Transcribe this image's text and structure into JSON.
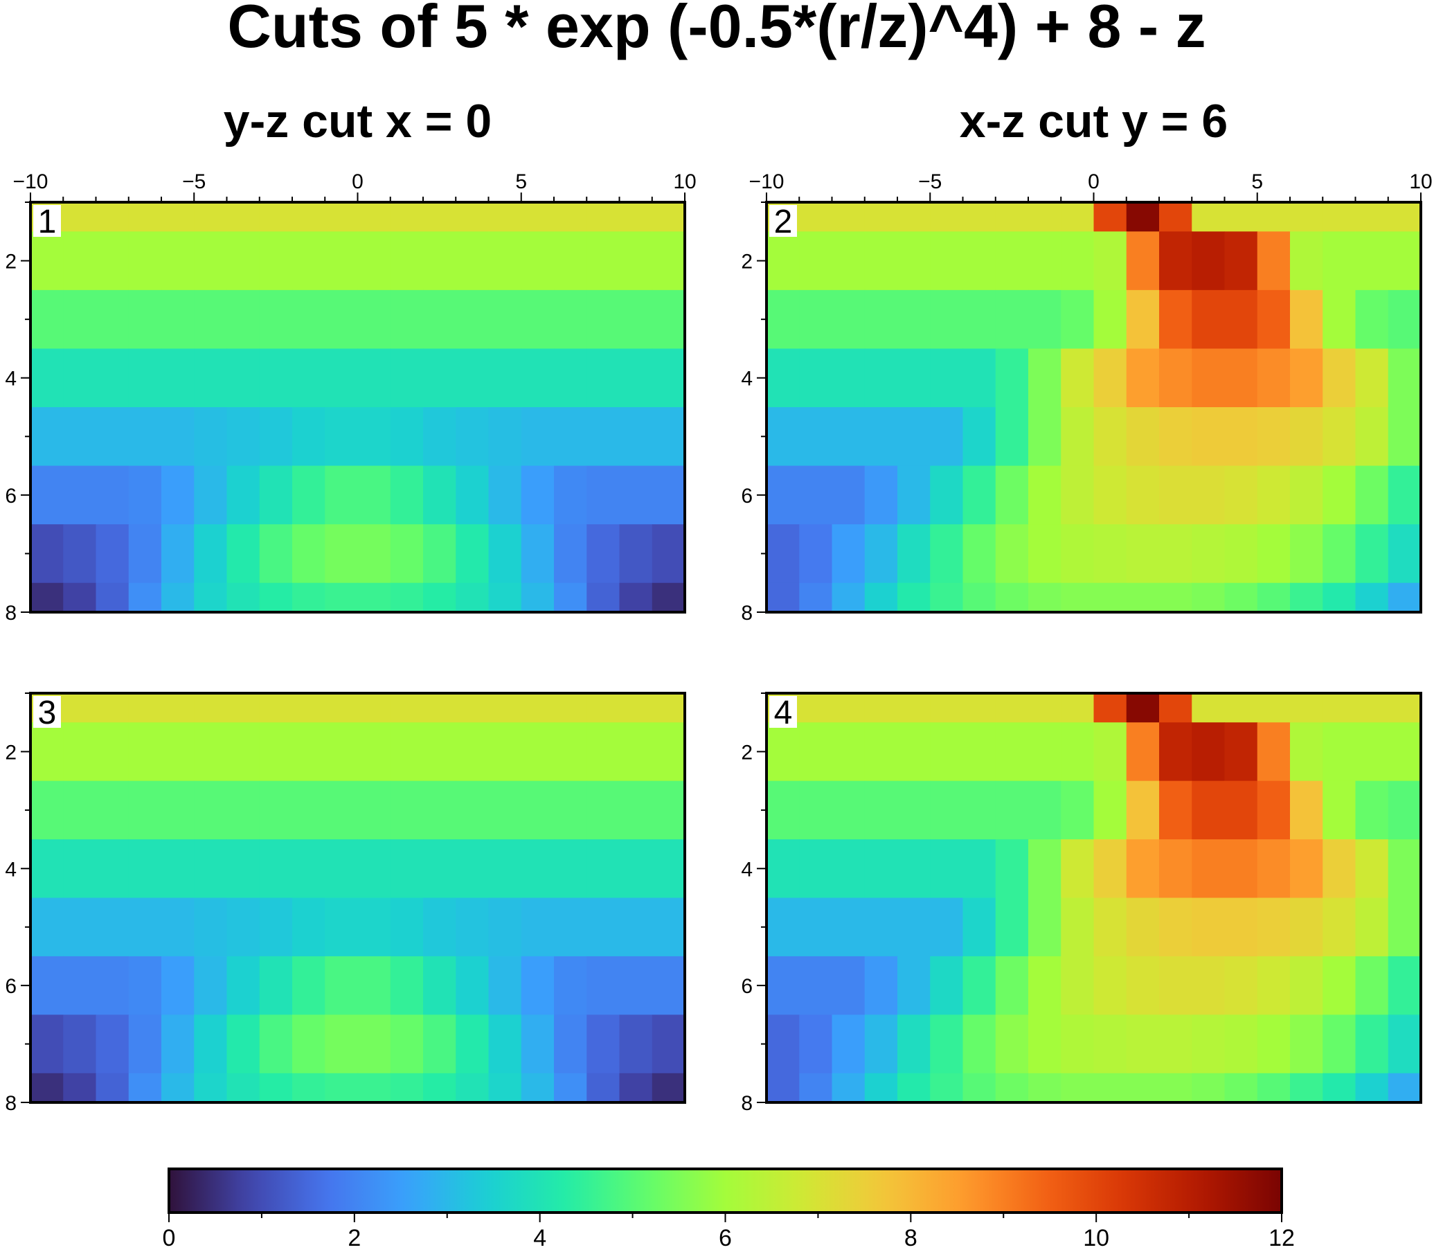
{
  "figure": {
    "title": "Cuts of 5 * exp (-0.5*(r/z)^4) + 8 - z"
  },
  "colormap": [
    "#30123b",
    "#4145ab",
    "#4675ed",
    "#39a2fc",
    "#1bcfd4",
    "#24eca6",
    "#61fc6c",
    "#a4fc3b",
    "#d1e834",
    "#f3c63a",
    "#fe9b2d",
    "#f36315",
    "#d93806",
    "#b11901",
    "#7a0402"
  ],
  "chart_data": [
    {
      "type": "heatmap",
      "panel": "1",
      "title": "y-z cut x = 0",
      "x": [
        -9.5,
        -8.5,
        -7.5,
        -6.5,
        -5.5,
        -4.5,
        -3.5,
        -2.5,
        -1.5,
        -0.5,
        0.5,
        1.5,
        2.5,
        3.5,
        4.5,
        5.5,
        6.5,
        7.5,
        8.5,
        9.5
      ],
      "z": [
        1,
        2,
        3,
        4,
        5,
        6,
        7,
        8
      ],
      "xlim": [
        -10,
        10
      ],
      "ylim": [
        1,
        8
      ],
      "x_ticks": [
        "−10",
        "−5",
        "0",
        "5",
        "10"
      ],
      "y_ticks": [
        "2",
        "4",
        "6",
        "8"
      ],
      "values": [
        [
          7.0,
          7.0,
          7.0,
          7.0,
          7.0,
          7.0,
          7.0,
          7.0,
          7.0,
          7.0,
          7.0,
          7.0,
          7.0,
          7.0,
          7.0,
          7.0,
          7.0,
          7.0,
          7.0,
          7.0
        ],
        [
          6.0,
          6.0,
          6.0,
          6.0,
          6.0,
          6.0,
          6.0,
          6.0,
          6.0,
          6.0,
          6.0,
          6.0,
          6.0,
          6.0,
          6.0,
          6.0,
          6.0,
          6.0,
          6.0,
          6.0
        ],
        [
          5.0,
          5.0,
          5.0,
          5.0,
          5.0,
          5.0,
          5.0,
          5.0,
          5.0,
          5.0,
          5.0,
          5.0,
          5.0,
          5.0,
          5.0,
          5.0,
          5.0,
          5.0,
          5.0,
          5.0
        ],
        [
          4.0,
          4.0,
          4.0,
          4.0,
          4.0,
          4.0,
          4.0,
          4.0,
          4.0,
          4.0,
          4.0,
          4.0,
          4.0,
          4.0,
          4.0,
          4.0,
          4.0,
          4.0,
          4.0,
          4.0
        ],
        [
          3.0,
          3.0,
          3.0,
          3.0,
          3.0,
          3.1,
          3.2,
          3.3,
          3.5,
          3.6,
          3.6,
          3.5,
          3.3,
          3.2,
          3.1,
          3.0,
          3.0,
          3.0,
          3.0,
          3.0
        ],
        [
          2.0,
          2.0,
          2.0,
          2.1,
          2.5,
          3.0,
          3.5,
          4.0,
          4.5,
          4.8,
          4.8,
          4.5,
          4.0,
          3.5,
          3.0,
          2.5,
          2.1,
          2.0,
          2.0,
          2.0
        ],
        [
          1.0,
          1.2,
          1.5,
          2.0,
          2.8,
          3.5,
          4.2,
          4.8,
          5.2,
          5.4,
          5.4,
          5.2,
          4.8,
          4.2,
          3.5,
          2.8,
          2.0,
          1.5,
          1.2,
          1.0
        ],
        [
          0.5,
          0.8,
          1.4,
          2.2,
          3.0,
          3.6,
          4.0,
          4.3,
          4.5,
          4.6,
          4.6,
          4.5,
          4.3,
          4.0,
          3.6,
          3.0,
          2.2,
          1.4,
          0.8,
          0.5
        ]
      ]
    },
    {
      "type": "heatmap",
      "panel": "2",
      "title": "x-z cut y = 6",
      "x": [
        -9.5,
        -8.5,
        -7.5,
        -6.5,
        -5.5,
        -4.5,
        -3.5,
        -2.5,
        -1.5,
        -0.5,
        0.5,
        1.5,
        2.5,
        3.5,
        4.5,
        5.5,
        6.5,
        7.5,
        8.5,
        9.5
      ],
      "z": [
        1,
        2,
        3,
        4,
        5,
        6,
        7,
        8
      ],
      "xlim": [
        -10,
        10
      ],
      "ylim": [
        1,
        8
      ],
      "x_ticks": [
        "−10",
        "−5",
        "0",
        "5",
        "10"
      ],
      "y_ticks": [
        "2",
        "4",
        "6",
        "8"
      ],
      "values": [
        [
          7.0,
          7.0,
          7.0,
          7.0,
          7.0,
          7.0,
          7.0,
          7.0,
          7.0,
          7.0,
          10.0,
          11.8,
          10.0,
          7.0,
          7.0,
          7.0,
          7.0,
          7.0,
          7.0,
          7.0
        ],
        [
          6.0,
          6.0,
          6.0,
          6.0,
          6.0,
          6.0,
          6.0,
          6.0,
          6.0,
          6.0,
          6.2,
          9.0,
          10.8,
          11.0,
          10.8,
          9.0,
          6.2,
          6.0,
          6.0,
          6.0
        ],
        [
          5.0,
          5.0,
          5.0,
          5.0,
          5.0,
          5.0,
          5.0,
          5.0,
          5.0,
          5.2,
          6.0,
          7.8,
          9.5,
          10.0,
          10.0,
          9.5,
          7.8,
          6.0,
          5.2,
          5.0
        ],
        [
          4.0,
          4.0,
          4.0,
          4.0,
          4.0,
          4.0,
          4.0,
          4.5,
          5.5,
          6.8,
          7.5,
          8.5,
          8.8,
          9.0,
          9.0,
          8.8,
          8.5,
          7.5,
          6.8,
          5.5
        ],
        [
          3.0,
          3.0,
          3.0,
          3.0,
          3.0,
          3.0,
          3.6,
          4.5,
          5.5,
          6.5,
          7.0,
          7.3,
          7.5,
          7.6,
          7.6,
          7.5,
          7.3,
          7.0,
          6.5,
          5.5
        ],
        [
          2.0,
          2.0,
          2.0,
          2.4,
          3.0,
          3.7,
          4.5,
          5.3,
          6.0,
          6.5,
          6.8,
          7.0,
          7.1,
          7.1,
          7.0,
          6.8,
          6.5,
          6.0,
          5.3,
          4.5
        ],
        [
          1.5,
          1.8,
          2.5,
          3.0,
          3.8,
          4.5,
          5.2,
          5.7,
          6.0,
          6.2,
          6.3,
          6.4,
          6.4,
          6.3,
          6.2,
          6.0,
          5.7,
          5.2,
          4.5,
          3.8
        ],
        [
          1.5,
          2.0,
          2.8,
          3.5,
          4.2,
          4.6,
          5.0,
          5.3,
          5.5,
          5.6,
          5.6,
          5.6,
          5.6,
          5.5,
          5.3,
          5.0,
          4.6,
          4.2,
          3.5,
          2.8
        ]
      ]
    },
    {
      "type": "heatmap",
      "panel": "3",
      "title": "",
      "x": [
        -9.5,
        -8.5,
        -7.5,
        -6.5,
        -5.5,
        -4.5,
        -3.5,
        -2.5,
        -1.5,
        -0.5,
        0.5,
        1.5,
        2.5,
        3.5,
        4.5,
        5.5,
        6.5,
        7.5,
        8.5,
        9.5
      ],
      "z": [
        1,
        2,
        3,
        4,
        5,
        6,
        7,
        8
      ],
      "xlim": [
        -10,
        10
      ],
      "ylim": [
        1,
        8
      ],
      "x_ticks": [],
      "y_ticks": [
        "2",
        "4",
        "6",
        "8"
      ],
      "values": [
        [
          7.0,
          7.0,
          7.0,
          7.0,
          7.0,
          7.0,
          7.0,
          7.0,
          7.0,
          7.0,
          7.0,
          7.0,
          7.0,
          7.0,
          7.0,
          7.0,
          7.0,
          7.0,
          7.0,
          7.0
        ],
        [
          6.0,
          6.0,
          6.0,
          6.0,
          6.0,
          6.0,
          6.0,
          6.0,
          6.0,
          6.0,
          6.0,
          6.0,
          6.0,
          6.0,
          6.0,
          6.0,
          6.0,
          6.0,
          6.0,
          6.0
        ],
        [
          5.0,
          5.0,
          5.0,
          5.0,
          5.0,
          5.0,
          5.0,
          5.0,
          5.0,
          5.0,
          5.0,
          5.0,
          5.0,
          5.0,
          5.0,
          5.0,
          5.0,
          5.0,
          5.0,
          5.0
        ],
        [
          4.0,
          4.0,
          4.0,
          4.0,
          4.0,
          4.0,
          4.0,
          4.0,
          4.0,
          4.0,
          4.0,
          4.0,
          4.0,
          4.0,
          4.0,
          4.0,
          4.0,
          4.0,
          4.0,
          4.0
        ],
        [
          3.0,
          3.0,
          3.0,
          3.0,
          3.0,
          3.1,
          3.2,
          3.3,
          3.5,
          3.6,
          3.6,
          3.5,
          3.3,
          3.2,
          3.1,
          3.0,
          3.0,
          3.0,
          3.0,
          3.0
        ],
        [
          2.0,
          2.0,
          2.0,
          2.1,
          2.5,
          3.0,
          3.5,
          4.0,
          4.5,
          4.8,
          4.8,
          4.5,
          4.0,
          3.5,
          3.0,
          2.5,
          2.1,
          2.0,
          2.0,
          2.0
        ],
        [
          1.0,
          1.2,
          1.5,
          2.0,
          2.8,
          3.5,
          4.2,
          4.8,
          5.2,
          5.4,
          5.4,
          5.2,
          4.8,
          4.2,
          3.5,
          2.8,
          2.0,
          1.5,
          1.2,
          1.0
        ],
        [
          0.5,
          0.8,
          1.4,
          2.2,
          3.0,
          3.6,
          4.0,
          4.3,
          4.5,
          4.6,
          4.6,
          4.5,
          4.3,
          4.0,
          3.6,
          3.0,
          2.2,
          1.4,
          0.8,
          0.5
        ]
      ]
    },
    {
      "type": "heatmap",
      "panel": "4",
      "title": "",
      "x": [
        -9.5,
        -8.5,
        -7.5,
        -6.5,
        -5.5,
        -4.5,
        -3.5,
        -2.5,
        -1.5,
        -0.5,
        0.5,
        1.5,
        2.5,
        3.5,
        4.5,
        5.5,
        6.5,
        7.5,
        8.5,
        9.5
      ],
      "z": [
        1,
        2,
        3,
        4,
        5,
        6,
        7,
        8
      ],
      "xlim": [
        -10,
        10
      ],
      "ylim": [
        1,
        8
      ],
      "x_ticks": [],
      "y_ticks": [
        "2",
        "4",
        "6",
        "8"
      ],
      "values": [
        [
          7.0,
          7.0,
          7.0,
          7.0,
          7.0,
          7.0,
          7.0,
          7.0,
          7.0,
          7.0,
          10.0,
          11.8,
          10.0,
          7.0,
          7.0,
          7.0,
          7.0,
          7.0,
          7.0,
          7.0
        ],
        [
          6.0,
          6.0,
          6.0,
          6.0,
          6.0,
          6.0,
          6.0,
          6.0,
          6.0,
          6.0,
          6.2,
          9.0,
          10.8,
          11.0,
          10.8,
          9.0,
          6.2,
          6.0,
          6.0,
          6.0
        ],
        [
          5.0,
          5.0,
          5.0,
          5.0,
          5.0,
          5.0,
          5.0,
          5.0,
          5.0,
          5.2,
          6.0,
          7.8,
          9.5,
          10.0,
          10.0,
          9.5,
          7.8,
          6.0,
          5.2,
          5.0
        ],
        [
          4.0,
          4.0,
          4.0,
          4.0,
          4.0,
          4.0,
          4.0,
          4.5,
          5.5,
          6.8,
          7.5,
          8.5,
          8.8,
          9.0,
          9.0,
          8.8,
          8.5,
          7.5,
          6.8,
          5.5
        ],
        [
          3.0,
          3.0,
          3.0,
          3.0,
          3.0,
          3.0,
          3.6,
          4.5,
          5.5,
          6.5,
          7.0,
          7.3,
          7.5,
          7.6,
          7.6,
          7.5,
          7.3,
          7.0,
          6.5,
          5.5
        ],
        [
          2.0,
          2.0,
          2.0,
          2.4,
          3.0,
          3.7,
          4.5,
          5.3,
          6.0,
          6.5,
          6.8,
          7.0,
          7.1,
          7.1,
          7.0,
          6.8,
          6.5,
          6.0,
          5.3,
          4.5
        ],
        [
          1.5,
          1.8,
          2.5,
          3.0,
          3.8,
          4.5,
          5.2,
          5.7,
          6.0,
          6.2,
          6.3,
          6.4,
          6.4,
          6.3,
          6.2,
          6.0,
          5.7,
          5.2,
          4.5,
          3.8
        ],
        [
          1.5,
          2.0,
          2.8,
          3.5,
          4.2,
          4.6,
          5.0,
          5.3,
          5.5,
          5.6,
          5.6,
          5.6,
          5.6,
          5.5,
          5.3,
          5.0,
          4.6,
          4.2,
          3.5,
          2.8
        ]
      ]
    },
    {
      "type": "colorbar",
      "range": [
        0,
        12
      ],
      "ticks": [
        "0",
        "2",
        "4",
        "6",
        "8",
        "10",
        "12"
      ],
      "tick_values": [
        0,
        2,
        4,
        6,
        8,
        10,
        12
      ]
    }
  ]
}
